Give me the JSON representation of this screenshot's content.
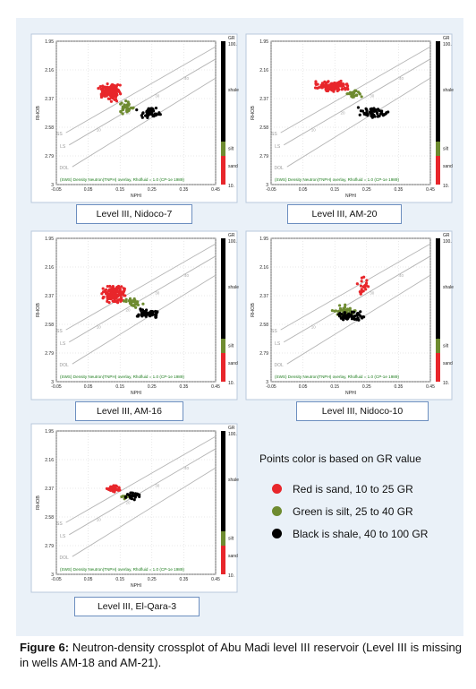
{
  "colors": {
    "sand": "#e8262b",
    "silt": "#6e8b30",
    "shale": "#000000",
    "caption_border": "#6c8ebf",
    "plot_overlay": "#1a7a1a",
    "grid": "#c8c8c8"
  },
  "common": {
    "xlabel": "NPHI",
    "ylabel": "RHOB",
    "x_ticks": [
      "-0.05",
      "0.05",
      "0.15",
      "0.25",
      "0.35",
      "0.45"
    ],
    "y_ticks": [
      "1.95",
      "2.16",
      "2.37",
      "2.58",
      "2.79",
      "3"
    ],
    "overlay_text": "(SWS) Density Neutron(TNPH) overlay, Rhofluid = 1.0 (CP-1e 1989)",
    "line_labels": {
      "ss": "SS",
      "ls": "LS",
      "dol": "DOL"
    },
    "porosity_labels": [
      "10",
      "20",
      "30",
      "40"
    ],
    "gr_bar": {
      "title": "GR",
      "top_value": "100.",
      "bottom_value": "10.",
      "shale": "shale",
      "silt": "silt",
      "sand": "sand"
    }
  },
  "panels": [
    {
      "caption": "Level III, Nidoco-7"
    },
    {
      "caption": "Level III, AM-20"
    },
    {
      "caption": "Level III, AM-16"
    },
    {
      "caption": "Level III, Nidoco-10"
    },
    {
      "caption": "Level III, El-Qara-3"
    }
  ],
  "legend": {
    "title": "Points color is based on GR value",
    "items": [
      {
        "label": "Red is sand, 10 to 25 GR",
        "color": "#e8262b"
      },
      {
        "label": "Green is silt, 25 to 40 GR",
        "color": "#6e8b30"
      },
      {
        "label": "Black is shale, 40 to 100 GR",
        "color": "#000000"
      }
    ]
  },
  "figure_caption": {
    "label": "Figure 6:",
    "text": " Neutron-density crossplot of Abu Madi level III reservoir (Level III is missing in wells AM-18 and AM-21)."
  },
  "chart_data": [
    {
      "type": "scatter",
      "title": "Level III, Nidoco-7",
      "xlabel": "NPHI",
      "ylabel": "RHOB",
      "xlim": [
        -0.05,
        0.45
      ],
      "ylim": [
        3,
        1.95
      ],
      "series": [
        {
          "name": "sand",
          "center": [
            0.12,
            2.32
          ],
          "spread": [
            0.035,
            0.07
          ],
          "count": 160
        },
        {
          "name": "silt",
          "center": [
            0.17,
            2.44
          ],
          "spread": [
            0.025,
            0.05
          ],
          "count": 35
        },
        {
          "name": "shale",
          "center": [
            0.24,
            2.48
          ],
          "spread": [
            0.045,
            0.04
          ],
          "count": 45
        }
      ]
    },
    {
      "type": "scatter",
      "title": "Level III, AM-20",
      "xlabel": "NPHI",
      "ylabel": "RHOB",
      "xlim": [
        -0.05,
        0.45
      ],
      "ylim": [
        3,
        1.95
      ],
      "series": [
        {
          "name": "sand",
          "center": [
            0.14,
            2.28
          ],
          "spread": [
            0.06,
            0.04
          ],
          "count": 130
        },
        {
          "name": "silt",
          "center": [
            0.21,
            2.34
          ],
          "spread": [
            0.025,
            0.04
          ],
          "count": 25
        },
        {
          "name": "shale",
          "center": [
            0.27,
            2.47
          ],
          "spread": [
            0.05,
            0.04
          ],
          "count": 55
        }
      ]
    },
    {
      "type": "scatter",
      "title": "Level III, AM-16",
      "xlabel": "NPHI",
      "ylabel": "RHOB",
      "xlim": [
        -0.05,
        0.45
      ],
      "ylim": [
        3,
        1.95
      ],
      "series": [
        {
          "name": "sand",
          "center": [
            0.13,
            2.36
          ],
          "spread": [
            0.04,
            0.07
          ],
          "count": 140
        },
        {
          "name": "silt",
          "center": [
            0.19,
            2.42
          ],
          "spread": [
            0.03,
            0.05
          ],
          "count": 30
        },
        {
          "name": "shale",
          "center": [
            0.24,
            2.5
          ],
          "spread": [
            0.045,
            0.035
          ],
          "count": 60
        }
      ]
    },
    {
      "type": "scatter",
      "title": "Level III, Nidoco-10",
      "xlabel": "NPHI",
      "ylabel": "RHOB",
      "xlim": [
        -0.05,
        0.45
      ],
      "ylim": [
        3,
        1.95
      ],
      "series": [
        {
          "name": "sand",
          "center": [
            0.24,
            2.3
          ],
          "spread": [
            0.02,
            0.08
          ],
          "count": 22
        },
        {
          "name": "silt",
          "center": [
            0.18,
            2.48
          ],
          "spread": [
            0.04,
            0.05
          ],
          "count": 40
        },
        {
          "name": "shale",
          "center": [
            0.2,
            2.52
          ],
          "spread": [
            0.045,
            0.04
          ],
          "count": 70
        }
      ]
    },
    {
      "type": "scatter",
      "title": "Level III, El-Qara-3",
      "xlabel": "NPHI",
      "ylabel": "RHOB",
      "xlim": [
        -0.05,
        0.45
      ],
      "ylim": [
        3,
        1.95
      ],
      "series": [
        {
          "name": "sand",
          "center": [
            0.13,
            2.37
          ],
          "spread": [
            0.025,
            0.03
          ],
          "count": 40
        },
        {
          "name": "silt",
          "center": [
            0.17,
            2.43
          ],
          "spread": [
            0.02,
            0.03
          ],
          "count": 8
        },
        {
          "name": "shale",
          "center": [
            0.19,
            2.43
          ],
          "spread": [
            0.03,
            0.035
          ],
          "count": 30
        }
      ]
    }
  ]
}
